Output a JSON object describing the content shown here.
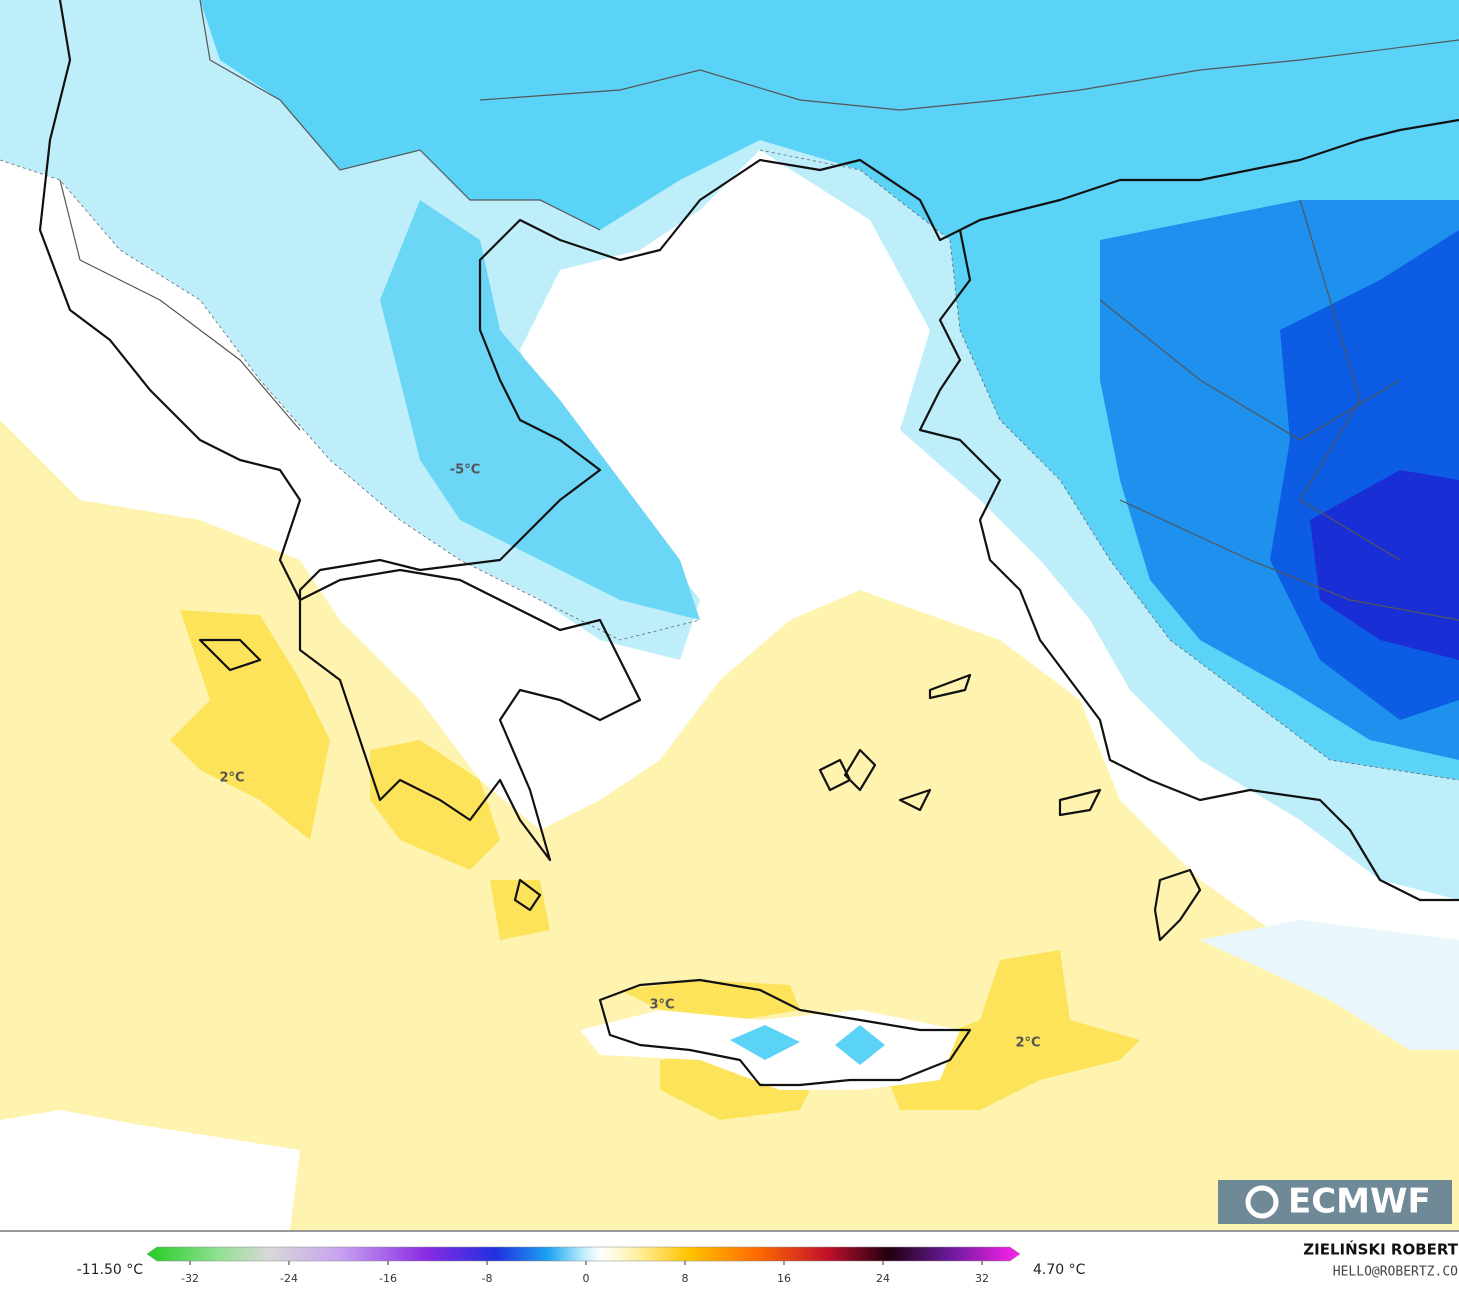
{
  "map": {
    "contour_labels": [
      "-5°C",
      "2°C",
      "3°C",
      "2°C"
    ],
    "logo": "ECMWF",
    "author": "ZIELIŃSKI ROBERT",
    "contact": "HELLO@ROBERTZ.CO",
    "colorbar": {
      "min_label": "-11.50 °C",
      "max_label": "4.70 °C",
      "ticks": [
        -32,
        -24,
        -16,
        -8,
        0,
        8,
        16,
        24,
        32
      ]
    }
  }
}
